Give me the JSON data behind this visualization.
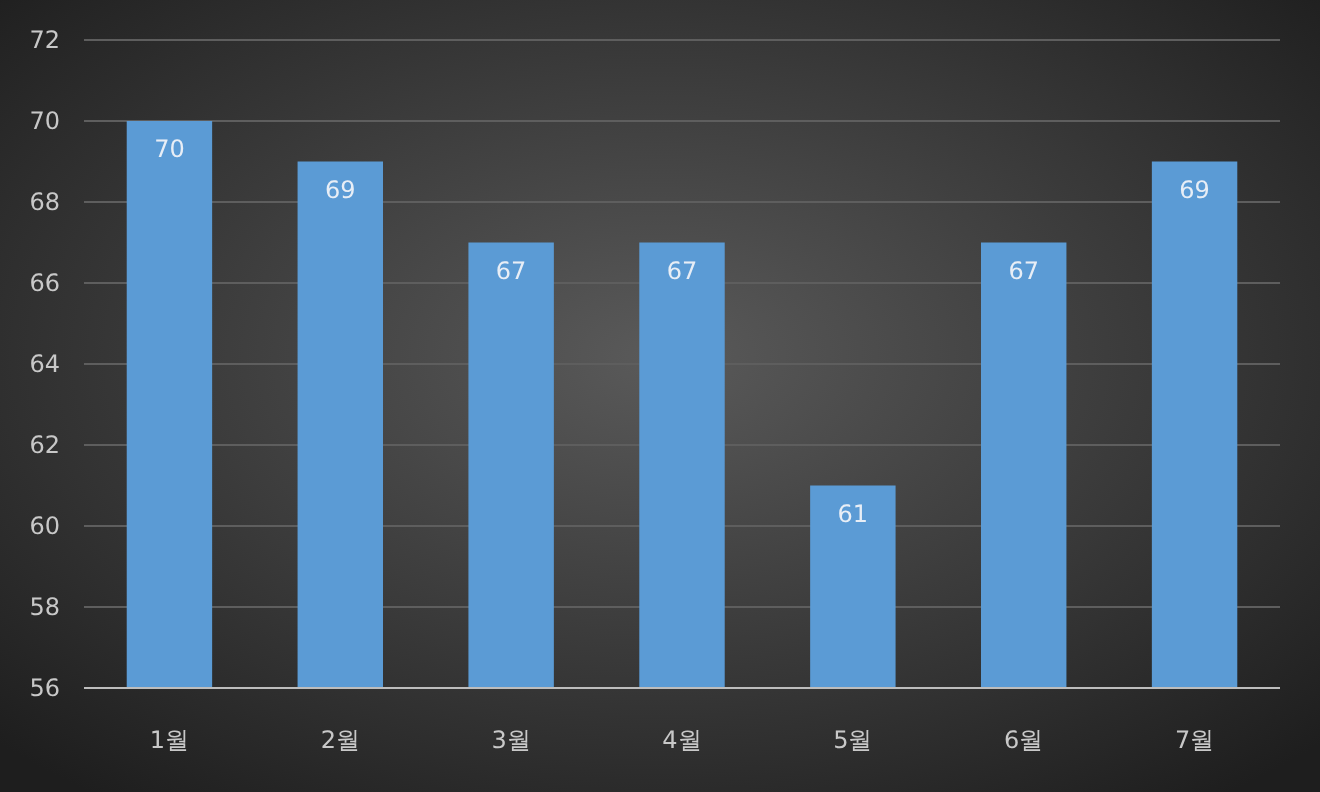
{
  "chart_data": {
    "type": "bar",
    "categories": [
      "1월",
      "2월",
      "3월",
      "4월",
      "5월",
      "6월",
      "7월"
    ],
    "values": [
      70,
      69,
      67,
      67,
      61,
      67,
      69
    ],
    "color": "#5b9bd5",
    "ylim": [
      56,
      72
    ],
    "yticks": [
      56,
      58,
      60,
      62,
      64,
      66,
      68,
      70,
      72
    ],
    "grid": "y",
    "data_labels": true
  }
}
